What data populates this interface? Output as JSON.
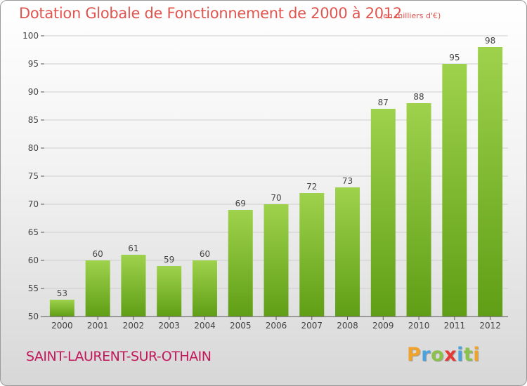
{
  "header": {
    "title": "Dotation Globale de Fonctionnement de 2000 à 2012",
    "subtitle": "(en milliers d'€)"
  },
  "footer": {
    "commune": "SAINT-LAURENT-SUR-OTHAIN",
    "logo": [
      "P",
      "r",
      "o",
      "x",
      "i",
      "t",
      "i"
    ]
  },
  "colors": {
    "title": "#e0554f",
    "commune": "#c2185b",
    "bar_light": "#9fd24c",
    "bar_dark": "#5f9e16"
  },
  "chart_data": {
    "type": "bar",
    "title": "Dotation Globale de Fonctionnement de 2000 à 2012",
    "subtitle": "(en milliers d'€)",
    "categories": [
      "2000",
      "2001",
      "2002",
      "2003",
      "2004",
      "2005",
      "2006",
      "2007",
      "2008",
      "2009",
      "2010",
      "2011",
      "2012"
    ],
    "values": [
      53,
      60,
      61,
      59,
      60,
      69,
      70,
      72,
      73,
      87,
      88,
      95,
      98
    ],
    "ylim": [
      50,
      100
    ],
    "yticks": [
      50,
      55,
      60,
      65,
      70,
      75,
      80,
      85,
      90,
      95,
      100
    ],
    "grid": true
  }
}
